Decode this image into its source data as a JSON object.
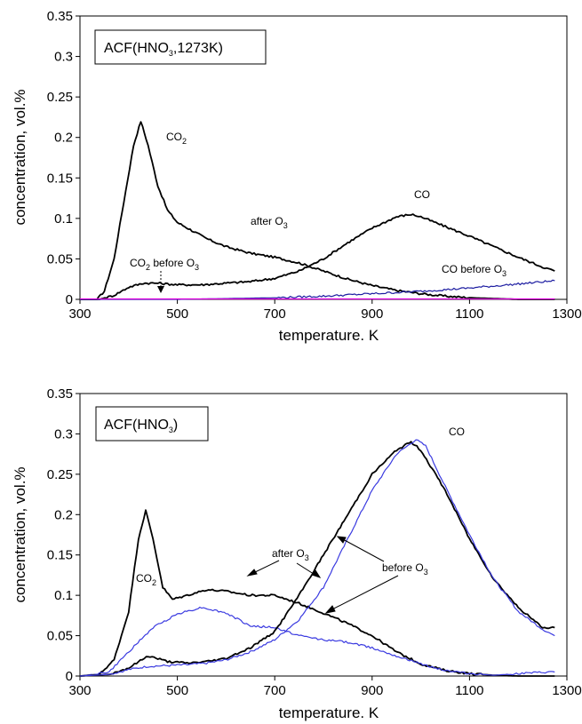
{
  "chart_data": [
    {
      "type": "line",
      "title": "ACF(HNO3,1273K)",
      "title_main": "ACF(HNO",
      "title_sub": "3",
      "title_tail": ",1273K)",
      "xlabel": "temperature. K",
      "ylabel": "concentration, vol.%",
      "xlim": [
        300,
        1300
      ],
      "ylim": [
        0,
        0.35
      ],
      "xticks": [
        "300",
        "500",
        "700",
        "900",
        "1100",
        "1300"
      ],
      "yticks": [
        "0",
        "0.05",
        "0.1",
        "0.15",
        "0.2",
        "0.25",
        "0.3",
        "0.35"
      ],
      "grid": false,
      "colors": {
        "after": "#000000",
        "before_co": "#1a1aa0",
        "before_co2": "#e000e0"
      },
      "series": [
        {
          "name": "CO2 after O3",
          "color": "#000000",
          "x": [
            300,
            335,
            350,
            370,
            390,
            410,
            425,
            440,
            460,
            480,
            500,
            530,
            560,
            600,
            650,
            700,
            750,
            800,
            850,
            900,
            950,
            1000,
            1050,
            1100,
            1150,
            1200,
            1250,
            1275
          ],
          "y": [
            0,
            0,
            0.01,
            0.05,
            0.12,
            0.19,
            0.22,
            0.19,
            0.14,
            0.11,
            0.095,
            0.085,
            0.075,
            0.065,
            0.057,
            0.052,
            0.045,
            0.035,
            0.025,
            0.017,
            0.011,
            0.007,
            0.004,
            0.002,
            0.001,
            0,
            0,
            0
          ]
        },
        {
          "name": "CO after O3",
          "color": "#000000",
          "x": [
            300,
            340,
            370,
            400,
            430,
            460,
            500,
            550,
            600,
            650,
            700,
            750,
            800,
            850,
            900,
            950,
            980,
            1000,
            1050,
            1100,
            1150,
            1200,
            1250,
            1275
          ],
          "y": [
            0,
            0,
            0.005,
            0.015,
            0.02,
            0.02,
            0.018,
            0.018,
            0.02,
            0.022,
            0.026,
            0.035,
            0.05,
            0.07,
            0.088,
            0.102,
            0.105,
            0.102,
            0.09,
            0.078,
            0.065,
            0.052,
            0.04,
            0.035
          ]
        },
        {
          "name": "CO before O3",
          "color": "#1a1aa0",
          "x": [
            300,
            500,
            600,
            700,
            800,
            900,
            1000,
            1100,
            1200,
            1275
          ],
          "y": [
            0,
            0,
            0.001,
            0.002,
            0.004,
            0.007,
            0.01,
            0.014,
            0.019,
            0.023
          ]
        },
        {
          "name": "CO2 before O3",
          "color": "#e000e0",
          "x": [
            300,
            1275
          ],
          "y": [
            0.0005,
            0.0005
          ]
        }
      ],
      "annotations": {
        "co2": {
          "main": "CO",
          "sub": "2"
        },
        "co": {
          "main": "CO"
        },
        "after": {
          "main": "after O",
          "sub": "3"
        },
        "co2_before": {
          "main1": "CO",
          "sub1": "2",
          "main2": " before O",
          "sub2": "3"
        },
        "co_before": {
          "main": "CO before O",
          "sub": "3"
        }
      }
    },
    {
      "type": "line",
      "title": "ACF(HNO3)",
      "title_main": "ACF(HNO",
      "title_sub": "3",
      "title_tail": ")",
      "xlabel": "temperature. K",
      "ylabel": "concentration, vol.%",
      "xlim": [
        300,
        1300
      ],
      "ylim": [
        0,
        0.35
      ],
      "xticks": [
        "300",
        "500",
        "700",
        "900",
        "1100",
        "1300"
      ],
      "yticks": [
        "0",
        "0.05",
        "0.1",
        "0.15",
        "0.2",
        "0.25",
        "0.3",
        "0.35"
      ],
      "grid": false,
      "colors": {
        "after": "#000000",
        "before": "#3a3ae0"
      },
      "series": [
        {
          "name": "CO2 after O3",
          "color": "#000000",
          "x": [
            300,
            340,
            370,
            400,
            420,
            435,
            450,
            470,
            490,
            520,
            560,
            600,
            650,
            700,
            750,
            800,
            850,
            900,
            950,
            1000,
            1050,
            1100,
            1150,
            1200,
            1275
          ],
          "y": [
            0,
            0.002,
            0.02,
            0.08,
            0.17,
            0.205,
            0.17,
            0.11,
            0.095,
            0.1,
            0.107,
            0.105,
            0.1,
            0.1,
            0.09,
            0.078,
            0.065,
            0.05,
            0.03,
            0.015,
            0.007,
            0.003,
            0.001,
            0,
            0
          ]
        },
        {
          "name": "CO2 before O3",
          "color": "#3a3ae0",
          "x": [
            300,
            360,
            400,
            450,
            500,
            550,
            600,
            650,
            700,
            750,
            800,
            850,
            900,
            950,
            1000,
            1050,
            1100,
            1150,
            1200,
            1275
          ],
          "y": [
            0,
            0.005,
            0.03,
            0.06,
            0.077,
            0.085,
            0.078,
            0.062,
            0.06,
            0.05,
            0.045,
            0.042,
            0.035,
            0.025,
            0.015,
            0.007,
            0.003,
            0.001,
            0.003,
            0.005
          ]
        },
        {
          "name": "CO after O3",
          "color": "#000000",
          "x": [
            300,
            360,
            400,
            440,
            480,
            520,
            560,
            600,
            650,
            700,
            750,
            800,
            850,
            900,
            950,
            980,
            1000,
            1050,
            1100,
            1150,
            1200,
            1250,
            1275
          ],
          "y": [
            0,
            0.002,
            0.01,
            0.025,
            0.018,
            0.016,
            0.018,
            0.022,
            0.035,
            0.055,
            0.1,
            0.15,
            0.2,
            0.25,
            0.28,
            0.29,
            0.28,
            0.23,
            0.17,
            0.12,
            0.085,
            0.06,
            0.06
          ]
        },
        {
          "name": "CO before O3",
          "color": "#3a3ae0",
          "x": [
            300,
            360,
            400,
            440,
            480,
            520,
            560,
            600,
            650,
            700,
            750,
            800,
            850,
            900,
            950,
            990,
            1010,
            1050,
            1100,
            1150,
            1200,
            1250,
            1275
          ],
          "y": [
            0,
            0.002,
            0.008,
            0.012,
            0.013,
            0.014,
            0.016,
            0.02,
            0.03,
            0.045,
            0.07,
            0.11,
            0.17,
            0.23,
            0.275,
            0.293,
            0.285,
            0.235,
            0.175,
            0.12,
            0.08,
            0.058,
            0.05
          ]
        }
      ],
      "annotations": {
        "co": {
          "main": "CO"
        },
        "co2": {
          "main": "CO",
          "sub": "2"
        },
        "after": {
          "main": "after O",
          "sub": "3"
        },
        "before": {
          "main": "before O",
          "sub": "3"
        }
      }
    }
  ]
}
